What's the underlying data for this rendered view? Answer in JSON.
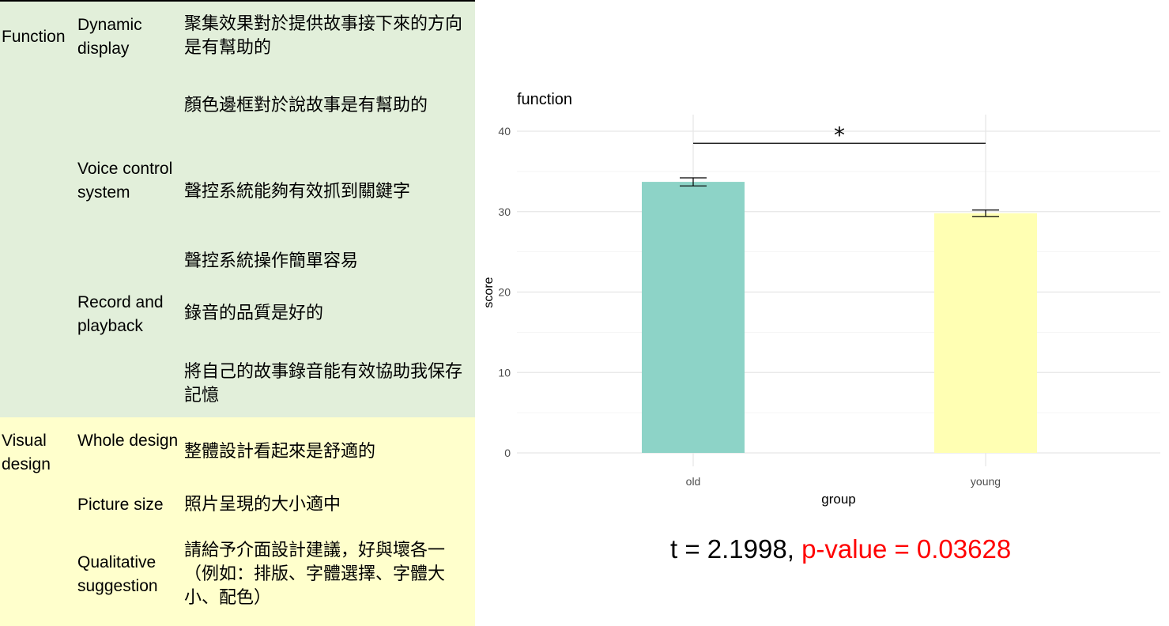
{
  "table": {
    "rows": [
      {
        "category": "Function",
        "feature": "Dynamic display",
        "item": "聚集效果對於提供故事接下來的方向是有幫助的"
      },
      {
        "category": "",
        "feature": "",
        "item": "顏色邊框對於說故事是有幫助的"
      },
      {
        "category": "",
        "feature": "Voice control system",
        "item": "聲控系統能夠有效抓到關鍵字"
      },
      {
        "category": "",
        "feature": "",
        "item": "聲控系統操作簡單容易"
      },
      {
        "category": "",
        "feature": "Record and playback",
        "item": "錄音的品質是好的"
      },
      {
        "category": "",
        "feature": "",
        "item": "將自己的故事錄音能有效協助我保存記憶"
      },
      {
        "category": "Visual design",
        "feature": "Whole design",
        "item": "整體設計看起來是舒適的"
      },
      {
        "category": "",
        "feature": "Picture size",
        "item": "照片呈現的大小適中"
      },
      {
        "category": "",
        "feature": "Qualitative suggestion",
        "item": "請給予介面設計建議，好與壞各一（例如：排版、字體選擇、字體大小、配色）"
      }
    ],
    "colors": {
      "function_band": "#e2efda",
      "visual_band": "#ffffcc"
    }
  },
  "chart_data": {
    "type": "bar",
    "title": "function",
    "xlabel": "group",
    "ylabel": "score",
    "categories": [
      "old",
      "young"
    ],
    "values": [
      33.7,
      29.8
    ],
    "error_bars": [
      [
        33.2,
        34.2
      ],
      [
        29.4,
        30.2
      ]
    ],
    "ylim": [
      0,
      40
    ],
    "yticks": [
      "0",
      "10",
      "20",
      "30",
      "40"
    ],
    "grid": true,
    "colors": [
      "#8dd3c7",
      "#ffffb3"
    ],
    "significance": {
      "label": "*",
      "level": 38.5
    }
  },
  "stats": {
    "t_text": "t = 2.1998, ",
    "p_text": "p-value = 0.03628"
  }
}
